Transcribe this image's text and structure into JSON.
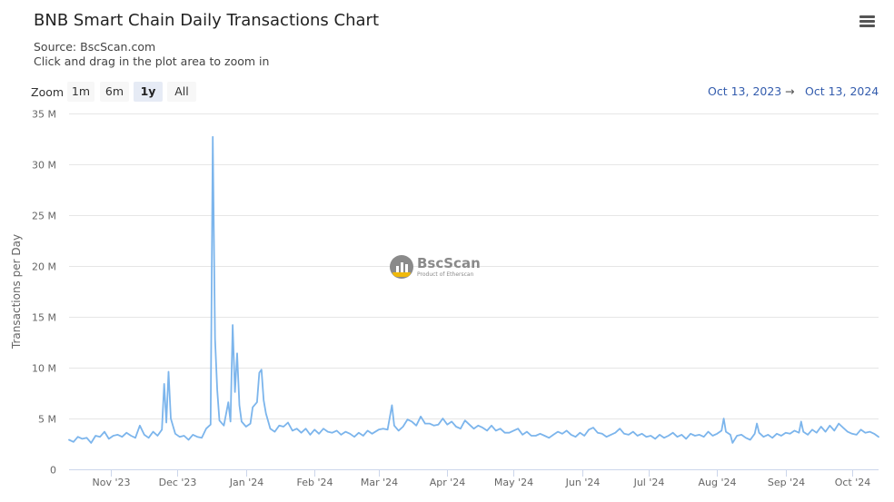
{
  "header": {
    "title": "BNB Smart Chain Daily Transactions Chart",
    "source": "Source: BscScan.com",
    "hint": "Click and drag in the plot area to zoom in"
  },
  "toolbar": {
    "zoom_label": "Zoom",
    "zoom_options": [
      "1m",
      "6m",
      "1y",
      "All"
    ],
    "selected_zoom": "1y",
    "range_from": "Oct 13, 2023",
    "range_arrow": "→",
    "range_to": "Oct 13, 2024",
    "menu_icon": "hamburger-menu-icon"
  },
  "watermark": {
    "name": "BscScan",
    "tagline": "Product of Etherscan"
  },
  "chart_data": {
    "type": "line",
    "title": "BNB Smart Chain Daily Transactions Chart",
    "ylabel": "Transactions per Day",
    "xlabel": "",
    "ylim": [
      0,
      35000000
    ],
    "y_ticks": [
      0,
      5000000,
      10000000,
      15000000,
      20000000,
      25000000,
      30000000,
      35000000
    ],
    "y_tick_labels": [
      "0",
      "5 M",
      "10 M",
      "15 M",
      "20 M",
      "25 M",
      "30 M",
      "35 M"
    ],
    "x_range": [
      "2023-10-13",
      "2024-10-13"
    ],
    "x_ticks": [
      "2023-11-01",
      "2023-12-01",
      "2024-01-01",
      "2024-02-01",
      "2024-03-01",
      "2024-04-01",
      "2024-05-01",
      "2024-06-01",
      "2024-07-01",
      "2024-08-01",
      "2024-09-01",
      "2024-10-01"
    ],
    "x_tick_labels": [
      "Nov '23",
      "Dec '23",
      "Jan '24",
      "Feb '24",
      "Mar '24",
      "Apr '24",
      "May '24",
      "Jun '24",
      "Jul '24",
      "Aug '24",
      "Sep '24",
      "Oct '24"
    ],
    "grid": true,
    "legend": "none",
    "line_color": "#7cb5ec",
    "series": [
      {
        "points": [
          [
            "2023-10-13",
            2900000
          ],
          [
            "2023-10-15",
            2700000
          ],
          [
            "2023-10-17",
            3200000
          ],
          [
            "2023-10-19",
            3000000
          ],
          [
            "2023-10-21",
            3100000
          ],
          [
            "2023-10-23",
            2600000
          ],
          [
            "2023-10-25",
            3300000
          ],
          [
            "2023-10-27",
            3200000
          ],
          [
            "2023-10-29",
            3700000
          ],
          [
            "2023-10-31",
            3000000
          ],
          [
            "2023-11-02",
            3300000
          ],
          [
            "2023-11-04",
            3400000
          ],
          [
            "2023-11-06",
            3200000
          ],
          [
            "2023-11-08",
            3600000
          ],
          [
            "2023-11-10",
            3300000
          ],
          [
            "2023-11-12",
            3100000
          ],
          [
            "2023-11-14",
            4300000
          ],
          [
            "2023-11-16",
            3400000
          ],
          [
            "2023-11-18",
            3100000
          ],
          [
            "2023-11-20",
            3700000
          ],
          [
            "2023-11-22",
            3300000
          ],
          [
            "2023-11-24",
            3900000
          ],
          [
            "2023-11-25",
            8400000
          ],
          [
            "2023-11-26",
            4600000
          ],
          [
            "2023-11-27",
            9600000
          ],
          [
            "2023-11-28",
            5000000
          ],
          [
            "2023-11-30",
            3500000
          ],
          [
            "2023-12-02",
            3200000
          ],
          [
            "2023-12-04",
            3300000
          ],
          [
            "2023-12-06",
            2900000
          ],
          [
            "2023-12-08",
            3400000
          ],
          [
            "2023-12-10",
            3200000
          ],
          [
            "2023-12-12",
            3100000
          ],
          [
            "2023-12-14",
            4000000
          ],
          [
            "2023-12-16",
            4400000
          ],
          [
            "2023-12-17",
            32700000
          ],
          [
            "2023-12-18",
            12800000
          ],
          [
            "2023-12-19",
            7800000
          ],
          [
            "2023-12-20",
            4800000
          ],
          [
            "2023-12-22",
            4300000
          ],
          [
            "2023-12-24",
            6600000
          ],
          [
            "2023-12-25",
            4700000
          ],
          [
            "2023-12-26",
            14200000
          ],
          [
            "2023-12-27",
            7600000
          ],
          [
            "2023-12-28",
            11400000
          ],
          [
            "2023-12-29",
            6300000
          ],
          [
            "2023-12-30",
            4700000
          ],
          [
            "2024-01-01",
            4200000
          ],
          [
            "2024-01-03",
            4500000
          ],
          [
            "2024-01-04",
            6100000
          ],
          [
            "2024-01-06",
            6600000
          ],
          [
            "2024-01-07",
            9500000
          ],
          [
            "2024-01-08",
            9800000
          ],
          [
            "2024-01-09",
            6800000
          ],
          [
            "2024-01-10",
            5500000
          ],
          [
            "2024-01-12",
            4000000
          ],
          [
            "2024-01-14",
            3700000
          ],
          [
            "2024-01-16",
            4300000
          ],
          [
            "2024-01-18",
            4200000
          ],
          [
            "2024-01-20",
            4600000
          ],
          [
            "2024-01-22",
            3800000
          ],
          [
            "2024-01-24",
            4000000
          ],
          [
            "2024-01-26",
            3600000
          ],
          [
            "2024-01-28",
            4000000
          ],
          [
            "2024-01-30",
            3400000
          ],
          [
            "2024-02-01",
            3900000
          ],
          [
            "2024-02-03",
            3500000
          ],
          [
            "2024-02-05",
            4000000
          ],
          [
            "2024-02-07",
            3700000
          ],
          [
            "2024-02-09",
            3600000
          ],
          [
            "2024-02-11",
            3800000
          ],
          [
            "2024-02-13",
            3400000
          ],
          [
            "2024-02-15",
            3700000
          ],
          [
            "2024-02-17",
            3500000
          ],
          [
            "2024-02-19",
            3200000
          ],
          [
            "2024-02-21",
            3600000
          ],
          [
            "2024-02-23",
            3300000
          ],
          [
            "2024-02-25",
            3800000
          ],
          [
            "2024-02-27",
            3500000
          ],
          [
            "2024-03-01",
            3900000
          ],
          [
            "2024-03-03",
            4000000
          ],
          [
            "2024-03-05",
            3900000
          ],
          [
            "2024-03-07",
            6300000
          ],
          [
            "2024-03-08",
            4300000
          ],
          [
            "2024-03-10",
            3800000
          ],
          [
            "2024-03-12",
            4200000
          ],
          [
            "2024-03-14",
            4900000
          ],
          [
            "2024-03-16",
            4700000
          ],
          [
            "2024-03-18",
            4300000
          ],
          [
            "2024-03-20",
            5200000
          ],
          [
            "2024-03-22",
            4500000
          ],
          [
            "2024-03-24",
            4500000
          ],
          [
            "2024-03-26",
            4300000
          ],
          [
            "2024-03-28",
            4400000
          ],
          [
            "2024-03-30",
            5000000
          ],
          [
            "2024-04-01",
            4400000
          ],
          [
            "2024-04-03",
            4700000
          ],
          [
            "2024-04-05",
            4200000
          ],
          [
            "2024-04-07",
            4000000
          ],
          [
            "2024-04-09",
            4800000
          ],
          [
            "2024-04-11",
            4400000
          ],
          [
            "2024-04-13",
            4000000
          ],
          [
            "2024-04-15",
            4300000
          ],
          [
            "2024-04-17",
            4100000
          ],
          [
            "2024-04-19",
            3800000
          ],
          [
            "2024-04-21",
            4300000
          ],
          [
            "2024-04-23",
            3800000
          ],
          [
            "2024-04-25",
            4000000
          ],
          [
            "2024-04-27",
            3600000
          ],
          [
            "2024-04-29",
            3600000
          ],
          [
            "2024-05-01",
            3800000
          ],
          [
            "2024-05-03",
            4000000
          ],
          [
            "2024-05-05",
            3400000
          ],
          [
            "2024-05-07",
            3700000
          ],
          [
            "2024-05-09",
            3300000
          ],
          [
            "2024-05-11",
            3300000
          ],
          [
            "2024-05-13",
            3500000
          ],
          [
            "2024-05-15",
            3300000
          ],
          [
            "2024-05-17",
            3100000
          ],
          [
            "2024-05-19",
            3400000
          ],
          [
            "2024-05-21",
            3700000
          ],
          [
            "2024-05-23",
            3500000
          ],
          [
            "2024-05-25",
            3800000
          ],
          [
            "2024-05-27",
            3400000
          ],
          [
            "2024-05-29",
            3200000
          ],
          [
            "2024-05-31",
            3600000
          ],
          [
            "2024-06-02",
            3300000
          ],
          [
            "2024-06-04",
            3900000
          ],
          [
            "2024-06-06",
            4100000
          ],
          [
            "2024-06-08",
            3600000
          ],
          [
            "2024-06-10",
            3500000
          ],
          [
            "2024-06-12",
            3200000
          ],
          [
            "2024-06-14",
            3400000
          ],
          [
            "2024-06-16",
            3600000
          ],
          [
            "2024-06-18",
            4000000
          ],
          [
            "2024-06-20",
            3500000
          ],
          [
            "2024-06-22",
            3400000
          ],
          [
            "2024-06-24",
            3700000
          ],
          [
            "2024-06-26",
            3300000
          ],
          [
            "2024-06-28",
            3500000
          ],
          [
            "2024-06-30",
            3200000
          ],
          [
            "2024-07-02",
            3300000
          ],
          [
            "2024-07-04",
            3000000
          ],
          [
            "2024-07-06",
            3400000
          ],
          [
            "2024-07-08",
            3100000
          ],
          [
            "2024-07-10",
            3300000
          ],
          [
            "2024-07-12",
            3600000
          ],
          [
            "2024-07-14",
            3200000
          ],
          [
            "2024-07-16",
            3400000
          ],
          [
            "2024-07-18",
            3000000
          ],
          [
            "2024-07-20",
            3500000
          ],
          [
            "2024-07-22",
            3300000
          ],
          [
            "2024-07-24",
            3400000
          ],
          [
            "2024-07-26",
            3200000
          ],
          [
            "2024-07-28",
            3700000
          ],
          [
            "2024-07-30",
            3300000
          ],
          [
            "2024-08-01",
            3500000
          ],
          [
            "2024-08-03",
            3800000
          ],
          [
            "2024-08-04",
            5000000
          ],
          [
            "2024-08-05",
            3700000
          ],
          [
            "2024-08-07",
            3400000
          ],
          [
            "2024-08-08",
            2600000
          ],
          [
            "2024-08-10",
            3300000
          ],
          [
            "2024-08-12",
            3400000
          ],
          [
            "2024-08-14",
            3100000
          ],
          [
            "2024-08-16",
            2900000
          ],
          [
            "2024-08-18",
            3500000
          ],
          [
            "2024-08-19",
            4500000
          ],
          [
            "2024-08-20",
            3600000
          ],
          [
            "2024-08-22",
            3200000
          ],
          [
            "2024-08-24",
            3400000
          ],
          [
            "2024-08-26",
            3100000
          ],
          [
            "2024-08-28",
            3500000
          ],
          [
            "2024-08-30",
            3300000
          ],
          [
            "2024-09-01",
            3600000
          ],
          [
            "2024-09-03",
            3500000
          ],
          [
            "2024-09-05",
            3800000
          ],
          [
            "2024-09-07",
            3600000
          ],
          [
            "2024-09-08",
            4700000
          ],
          [
            "2024-09-09",
            3700000
          ],
          [
            "2024-09-11",
            3400000
          ],
          [
            "2024-09-13",
            3900000
          ],
          [
            "2024-09-15",
            3600000
          ],
          [
            "2024-09-17",
            4200000
          ],
          [
            "2024-09-19",
            3700000
          ],
          [
            "2024-09-21",
            4300000
          ],
          [
            "2024-09-23",
            3800000
          ],
          [
            "2024-09-25",
            4500000
          ],
          [
            "2024-09-27",
            4100000
          ],
          [
            "2024-09-29",
            3700000
          ],
          [
            "2024-10-01",
            3500000
          ],
          [
            "2024-10-03",
            3400000
          ],
          [
            "2024-10-05",
            3900000
          ],
          [
            "2024-10-07",
            3600000
          ],
          [
            "2024-10-09",
            3700000
          ],
          [
            "2024-10-11",
            3500000
          ],
          [
            "2024-10-13",
            3200000
          ]
        ]
      }
    ]
  }
}
